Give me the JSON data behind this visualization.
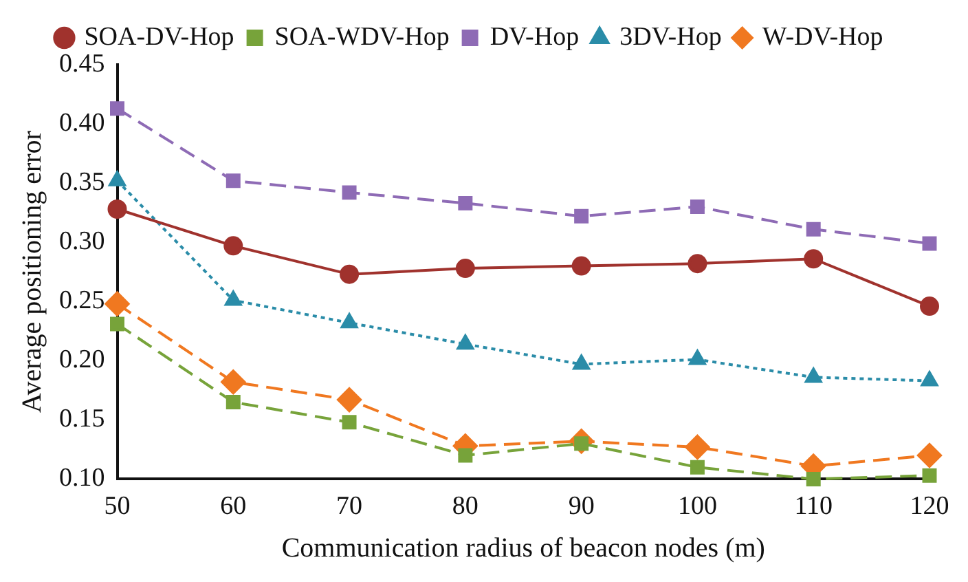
{
  "chart_data": {
    "type": "line",
    "xlabel": "Communication radius of beacon nodes (m)",
    "ylabel": "Average positioning error",
    "x": [
      50,
      60,
      70,
      80,
      90,
      100,
      110,
      120
    ],
    "xlim": [
      50,
      120
    ],
    "xticks": [
      50,
      60,
      70,
      80,
      90,
      100,
      110,
      120
    ],
    "ylim": [
      0.1,
      0.45
    ],
    "yticks": [
      {
        "value": 0.1,
        "label": "0.10"
      },
      {
        "value": 0.15,
        "label": "0.15"
      },
      {
        "value": 0.2,
        "label": "0.20"
      },
      {
        "value": 0.25,
        "label": "0.25"
      },
      {
        "value": 0.3,
        "label": "0.30"
      },
      {
        "value": 0.35,
        "label": "0.35"
      },
      {
        "value": 0.4,
        "label": "0.40"
      },
      {
        "value": 0.45,
        "label": "0.45"
      }
    ],
    "grid": false,
    "legend": "top",
    "series": [
      {
        "name": "SOA-DV-Hop",
        "color": "#a0322d",
        "marker": "circle",
        "line_style": "solid",
        "values": [
          0.328,
          0.297,
          0.273,
          0.278,
          0.28,
          0.282,
          0.286,
          0.246
        ]
      },
      {
        "name": "SOA-WDV-Hop",
        "color": "#77a33a",
        "marker": "square",
        "line_style": "dashed",
        "values": [
          0.231,
          0.165,
          0.148,
          0.12,
          0.13,
          0.11,
          0.1,
          0.103
        ]
      },
      {
        "name": "DV-Hop",
        "color": "#8e6bb5",
        "marker": "square",
        "line_style": "dashed",
        "values": [
          0.413,
          0.352,
          0.342,
          0.333,
          0.322,
          0.33,
          0.311,
          0.299
        ]
      },
      {
        "name": "3DV-Hop",
        "color": "#2a8ca8",
        "marker": "triangle",
        "line_style": "dotted",
        "values": [
          0.352,
          0.251,
          0.232,
          0.214,
          0.197,
          0.201,
          0.186,
          0.183
        ]
      },
      {
        "name": "W-DV-Hop",
        "color": "#f07820",
        "marker": "diamond",
        "line_style": "dashed",
        "values": [
          0.248,
          0.182,
          0.167,
          0.128,
          0.132,
          0.127,
          0.111,
          0.12
        ]
      }
    ]
  }
}
